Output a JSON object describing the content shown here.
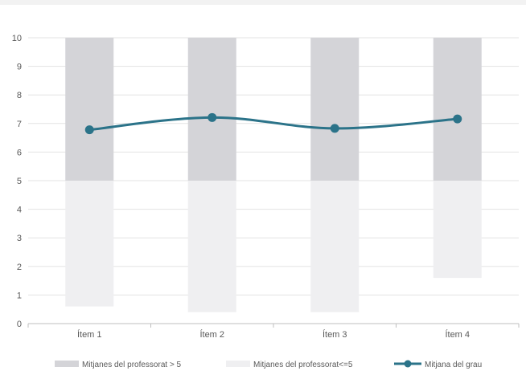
{
  "chart_data": {
    "type": "bar",
    "categories": [
      "Ítem 1",
      "Ítem 2",
      "Ítem 3",
      "Ítem 4"
    ],
    "ylim": [
      0,
      10
    ],
    "yticks": [
      0,
      1,
      2,
      3,
      4,
      5,
      6,
      7,
      8,
      9,
      10
    ],
    "grid": true,
    "legend_position": "bottom",
    "series": [
      {
        "name": "Mitjanes del professorat > 5",
        "kind": "floating-bar",
        "low": [
          5,
          5,
          5,
          5
        ],
        "high": [
          10,
          10,
          10,
          10
        ],
        "color": "#d4d4d8"
      },
      {
        "name": "Mitjanes del professorat<=5",
        "kind": "floating-bar",
        "low": [
          0.6,
          0.4,
          0.4,
          1.6
        ],
        "high": [
          5,
          5,
          5,
          5
        ],
        "color": "#efeff1"
      },
      {
        "name": "Mitjana del grau",
        "kind": "line",
        "values": [
          6.78,
          7.21,
          6.83,
          7.16
        ],
        "color": "#2b7389"
      }
    ]
  }
}
